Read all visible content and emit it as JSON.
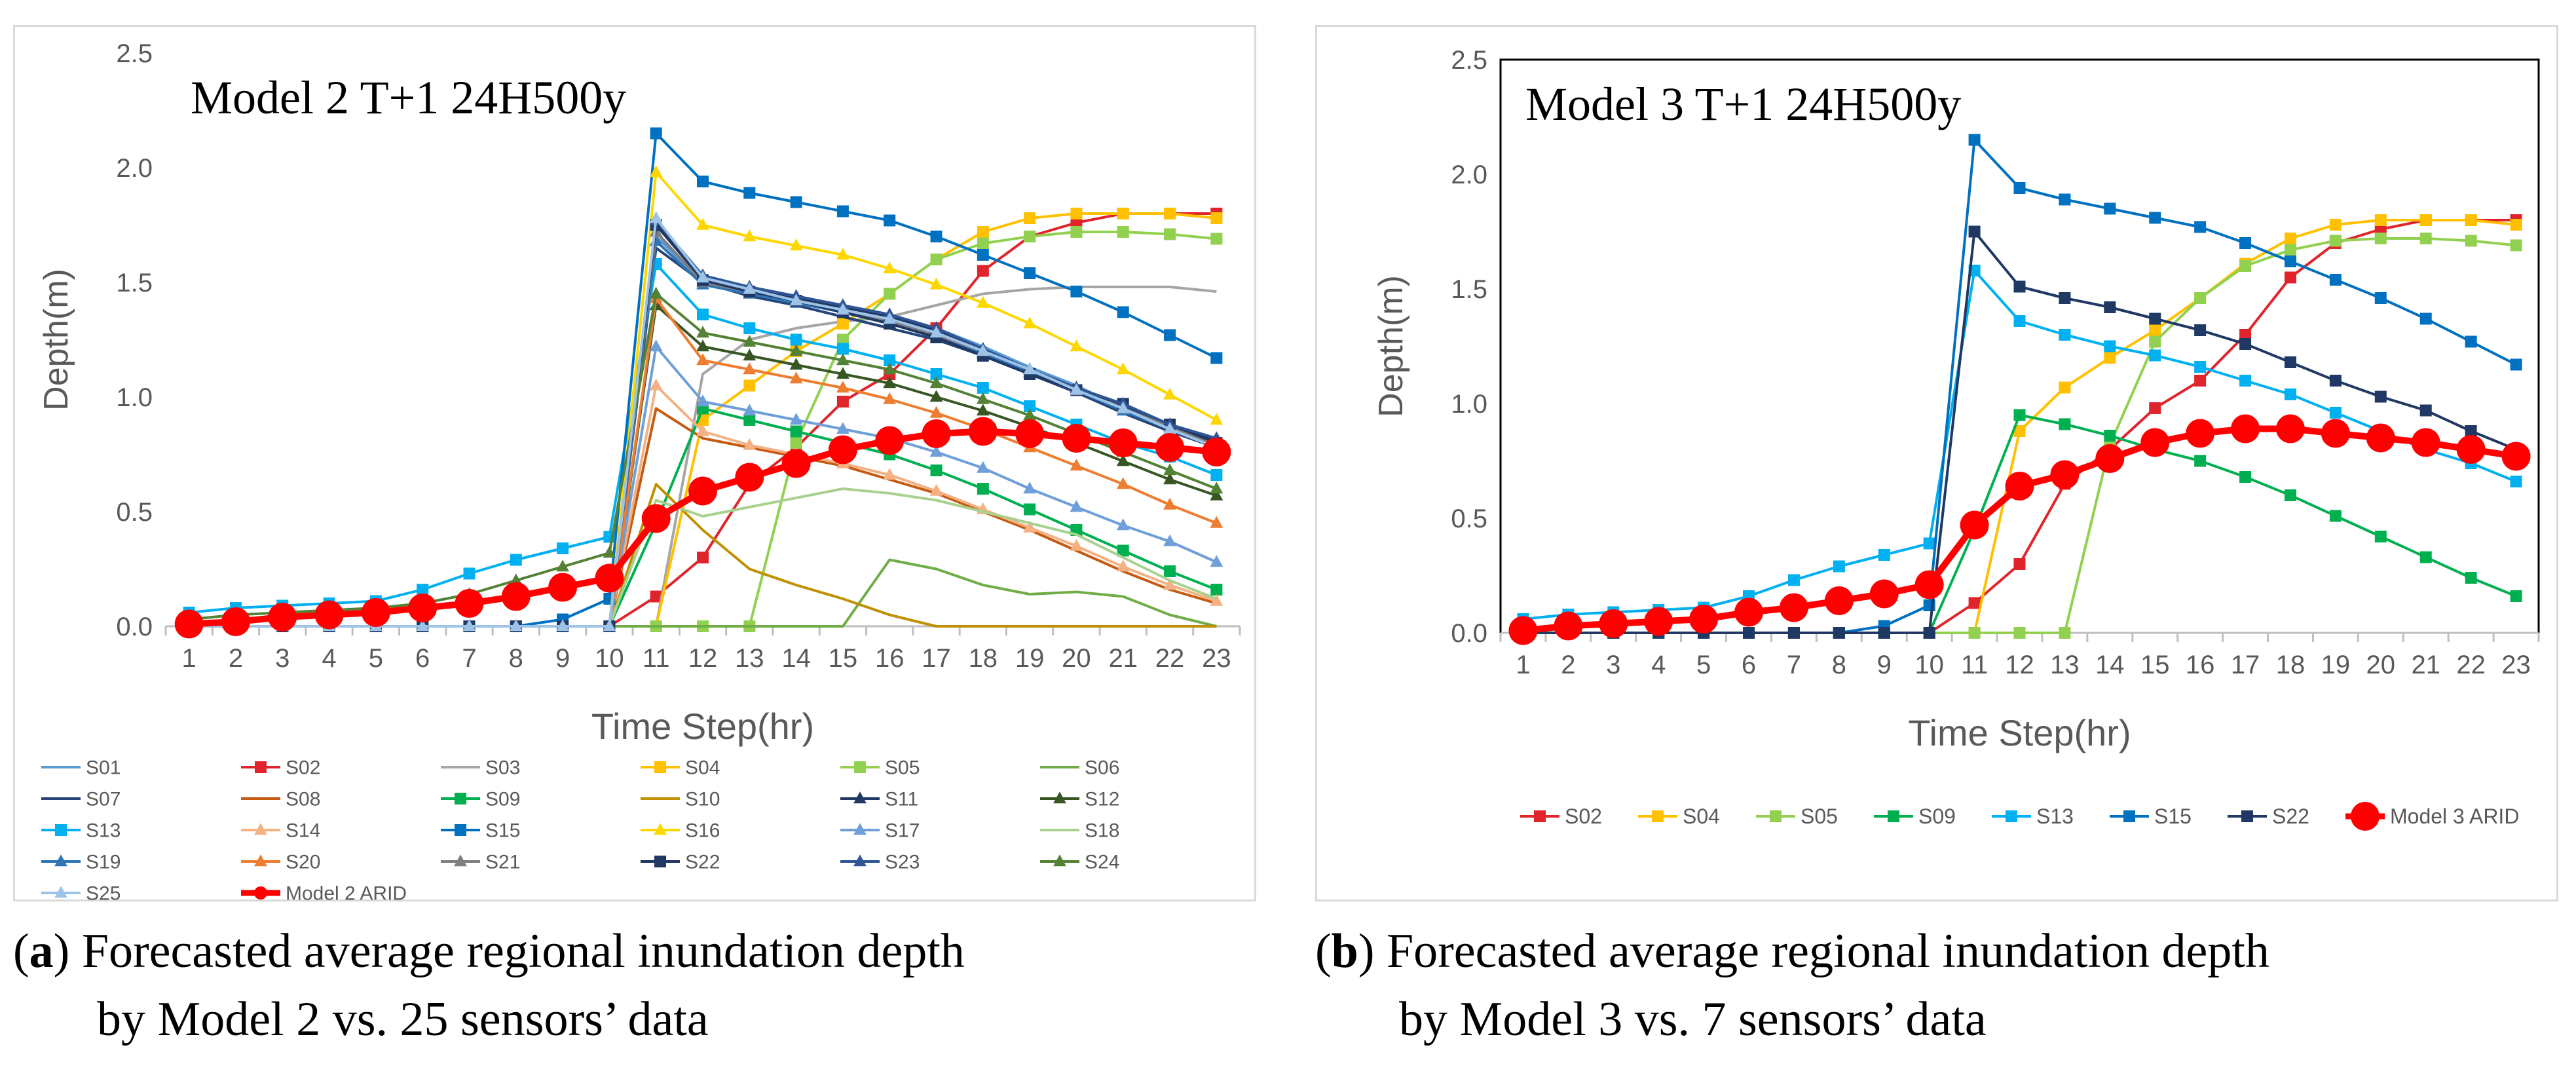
{
  "chart_data": [
    {
      "type": "line",
      "panel": "a",
      "title": "Model 2 T+1 24H500y",
      "xlabel": "Time Step(hr)",
      "ylabel": "Depth(m)",
      "ylim": [
        0,
        2.5
      ],
      "yticks": [
        "0.0",
        "0.5",
        "1.0",
        "1.5",
        "2.0",
        "2.5"
      ],
      "x": [
        1,
        2,
        3,
        4,
        5,
        6,
        7,
        8,
        9,
        10,
        11,
        12,
        13,
        14,
        15,
        16,
        17,
        18,
        19,
        20,
        21,
        22,
        23
      ],
      "legend_position": "bottom",
      "series": [
        {
          "name": "S01",
          "color": "#5b9bd5",
          "marker": "none",
          "values": [
            0,
            0,
            0,
            0,
            0,
            0,
            0,
            0,
            0,
            0,
            1.7,
            1.5,
            1.45,
            1.42,
            1.4,
            1.35,
            1.3,
            1.22,
            1.13,
            1.05,
            0.95,
            0.88,
            0.8
          ]
        },
        {
          "name": "S02",
          "color": "#e0242b",
          "marker": "square",
          "values": [
            0,
            0,
            0,
            0,
            0,
            0,
            0,
            0,
            0,
            0,
            0.13,
            0.3,
            0.62,
            0.78,
            0.98,
            1.1,
            1.3,
            1.55,
            1.7,
            1.76,
            1.8,
            1.8,
            1.8
          ]
        },
        {
          "name": "S03",
          "color": "#a5a5a5",
          "marker": "none",
          "values": [
            0,
            0,
            0,
            0,
            0,
            0,
            0,
            0,
            0,
            0,
            0,
            1.1,
            1.25,
            1.3,
            1.33,
            1.35,
            1.4,
            1.45,
            1.47,
            1.48,
            1.48,
            1.48,
            1.46
          ]
        },
        {
          "name": "S04",
          "color": "#ffc000",
          "marker": "square",
          "values": [
            0,
            0,
            0,
            0,
            0,
            0,
            0,
            0,
            0,
            0,
            0,
            0.9,
            1.05,
            1.2,
            1.32,
            1.45,
            1.6,
            1.72,
            1.78,
            1.8,
            1.8,
            1.8,
            1.78
          ]
        },
        {
          "name": "S05",
          "color": "#92d050",
          "marker": "square",
          "values": [
            0,
            0,
            0,
            0,
            0,
            0,
            0,
            0,
            0,
            0,
            0,
            0,
            0,
            0.8,
            1.25,
            1.45,
            1.6,
            1.67,
            1.7,
            1.72,
            1.72,
            1.71,
            1.69
          ]
        },
        {
          "name": "S06",
          "color": "#70ad47",
          "marker": "none",
          "values": [
            0,
            0,
            0,
            0,
            0,
            0,
            0,
            0,
            0,
            0,
            0,
            0,
            0,
            0,
            0,
            0.29,
            0.25,
            0.18,
            0.14,
            0.15,
            0.13,
            0.05,
            0
          ]
        },
        {
          "name": "S07",
          "color": "#264478",
          "marker": "none",
          "values": [
            0,
            0,
            0,
            0,
            0,
            0,
            0,
            0,
            0,
            0,
            1.65,
            1.5,
            1.44,
            1.4,
            1.35,
            1.3,
            1.25,
            1.18,
            1.1,
            1.02,
            0.93,
            0.85,
            0.78
          ]
        },
        {
          "name": "S08",
          "color": "#c55a11",
          "marker": "none",
          "values": [
            0,
            0,
            0,
            0,
            0,
            0,
            0,
            0,
            0,
            0,
            0.95,
            0.82,
            0.78,
            0.74,
            0.7,
            0.64,
            0.58,
            0.5,
            0.42,
            0.33,
            0.24,
            0.16,
            0.1
          ]
        },
        {
          "name": "S09",
          "color": "#00b050",
          "marker": "square",
          "values": [
            0,
            0,
            0,
            0,
            0,
            0,
            0,
            0,
            0,
            0,
            0.45,
            0.95,
            0.9,
            0.85,
            0.8,
            0.75,
            0.68,
            0.6,
            0.51,
            0.42,
            0.33,
            0.24,
            0.16
          ]
        },
        {
          "name": "S10",
          "color": "#bf9000",
          "marker": "none",
          "values": [
            0,
            0,
            0,
            0,
            0,
            0,
            0,
            0,
            0,
            0,
            0.62,
            0.42,
            0.25,
            0.18,
            0.12,
            0.05,
            0,
            0,
            0,
            0,
            0,
            0,
            0
          ]
        },
        {
          "name": "S11",
          "color": "#203864",
          "marker": "triangle",
          "values": [
            0,
            0,
            0,
            0,
            0,
            0,
            0,
            0,
            0,
            0,
            1.76,
            1.52,
            1.47,
            1.43,
            1.39,
            1.35,
            1.29,
            1.2,
            1.12,
            1.04,
            0.96,
            0.88,
            0.81
          ]
        },
        {
          "name": "S12",
          "color": "#375623",
          "marker": "triangle",
          "values": [
            0,
            0,
            0,
            0,
            0,
            0,
            0,
            0,
            0,
            0,
            1.4,
            1.22,
            1.18,
            1.14,
            1.1,
            1.06,
            1.0,
            0.94,
            0.87,
            0.8,
            0.72,
            0.64,
            0.57
          ]
        },
        {
          "name": "S13",
          "color": "#00b0f0",
          "marker": "square",
          "values": [
            0.06,
            0.08,
            0.09,
            0.1,
            0.11,
            0.16,
            0.23,
            0.29,
            0.34,
            0.39,
            1.58,
            1.36,
            1.3,
            1.25,
            1.21,
            1.16,
            1.1,
            1.04,
            0.96,
            0.88,
            0.8,
            0.74,
            0.66
          ]
        },
        {
          "name": "S14",
          "color": "#f4b183",
          "marker": "triangle",
          "values": [
            0,
            0,
            0,
            0,
            0,
            0,
            0,
            0,
            0,
            0,
            1.05,
            0.85,
            0.79,
            0.75,
            0.71,
            0.66,
            0.59,
            0.51,
            0.43,
            0.35,
            0.26,
            0.18,
            0.11
          ]
        },
        {
          "name": "S15",
          "color": "#0070c0",
          "marker": "square",
          "values": [
            0,
            0,
            0,
            0,
            0,
            0,
            0,
            0,
            0.03,
            0.12,
            2.15,
            1.94,
            1.89,
            1.85,
            1.81,
            1.77,
            1.7,
            1.62,
            1.54,
            1.46,
            1.37,
            1.27,
            1.17
          ]
        },
        {
          "name": "S16",
          "color": "#ffd700",
          "marker": "triangle",
          "values": [
            0,
            0,
            0,
            0,
            0,
            0,
            0,
            0,
            0,
            0,
            1.98,
            1.75,
            1.7,
            1.66,
            1.62,
            1.56,
            1.49,
            1.41,
            1.32,
            1.22,
            1.12,
            1.01,
            0.9
          ]
        },
        {
          "name": "S17",
          "color": "#6f9fd8",
          "marker": "triangle",
          "values": [
            0,
            0,
            0,
            0,
            0,
            0,
            0,
            0,
            0,
            0,
            1.22,
            0.98,
            0.94,
            0.9,
            0.86,
            0.82,
            0.76,
            0.69,
            0.6,
            0.52,
            0.44,
            0.37,
            0.28
          ]
        },
        {
          "name": "S18",
          "color": "#a9d18e",
          "marker": "none",
          "values": [
            0,
            0,
            0,
            0,
            0,
            0,
            0,
            0,
            0,
            0,
            0.55,
            0.48,
            0.52,
            0.56,
            0.6,
            0.58,
            0.55,
            0.5,
            0.45,
            0.4,
            0.3,
            0.2,
            0.12
          ]
        },
        {
          "name": "S19",
          "color": "#2e75b6",
          "marker": "triangle",
          "values": [
            0,
            0,
            0,
            0,
            0,
            0,
            0,
            0,
            0,
            0,
            1.68,
            1.49,
            1.45,
            1.41,
            1.37,
            1.32,
            1.26,
            1.19,
            1.11,
            1.03,
            0.94,
            0.86,
            0.78
          ]
        },
        {
          "name": "S20",
          "color": "#ed7d31",
          "marker": "triangle",
          "values": [
            0,
            0,
            0,
            0,
            0,
            0,
            0,
            0,
            0,
            0,
            1.43,
            1.16,
            1.12,
            1.08,
            1.04,
            0.99,
            0.93,
            0.86,
            0.78,
            0.7,
            0.62,
            0.53,
            0.45
          ]
        },
        {
          "name": "S21",
          "color": "#7f7f7f",
          "marker": "triangle",
          "values": [
            0,
            0,
            0,
            0,
            0,
            0,
            0,
            0,
            0,
            0,
            1.72,
            1.5,
            1.46,
            1.42,
            1.38,
            1.33,
            1.27,
            1.2,
            1.12,
            1.04,
            0.95,
            0.87,
            0.79
          ]
        },
        {
          "name": "S22",
          "color": "#1f3864",
          "marker": "square",
          "values": [
            0,
            0,
            0,
            0,
            0,
            0,
            0,
            0,
            0,
            0,
            1.75,
            1.51,
            1.46,
            1.42,
            1.37,
            1.32,
            1.26,
            1.18,
            1.1,
            1.03,
            0.97,
            0.88,
            0.8
          ]
        },
        {
          "name": "S23",
          "color": "#2f5597",
          "marker": "triangle",
          "values": [
            0,
            0,
            0,
            0,
            0,
            0,
            0,
            0,
            0,
            0,
            1.77,
            1.53,
            1.48,
            1.44,
            1.4,
            1.36,
            1.3,
            1.21,
            1.12,
            1.04,
            0.97,
            0.88,
            0.82
          ]
        },
        {
          "name": "S24",
          "color": "#548235",
          "marker": "triangle",
          "values": [
            0.03,
            0.05,
            0.06,
            0.07,
            0.08,
            0.1,
            0.14,
            0.2,
            0.26,
            0.32,
            1.45,
            1.28,
            1.24,
            1.2,
            1.16,
            1.12,
            1.06,
            0.99,
            0.92,
            0.84,
            0.76,
            0.68,
            0.6
          ]
        },
        {
          "name": "S25",
          "color": "#9dc3e6",
          "marker": "triangle",
          "values": [
            0,
            0,
            0,
            0,
            0,
            0,
            0,
            0,
            0,
            0,
            1.78,
            1.52,
            1.47,
            1.42,
            1.38,
            1.34,
            1.28,
            1.2,
            1.12,
            1.03,
            0.95,
            0.86,
            0.78
          ]
        },
        {
          "name": "Model 2 ARID",
          "color": "#ff0000",
          "marker": "circle",
          "bold": true,
          "values": [
            0.01,
            0.02,
            0.04,
            0.05,
            0.06,
            0.08,
            0.1,
            0.13,
            0.17,
            0.21,
            0.47,
            0.59,
            0.65,
            0.71,
            0.77,
            0.81,
            0.84,
            0.85,
            0.84,
            0.82,
            0.8,
            0.78,
            0.76
          ]
        }
      ]
    },
    {
      "type": "line",
      "panel": "b",
      "title": "Model 3 T+1 24H500y",
      "xlabel": "Time Step(hr)",
      "ylabel": "Depth(m)",
      "ylim": [
        0,
        2.5
      ],
      "yticks": [
        "0.0",
        "0.5",
        "1.0",
        "1.5",
        "2.0",
        "2.5"
      ],
      "x": [
        1,
        2,
        3,
        4,
        5,
        6,
        7,
        8,
        9,
        10,
        11,
        12,
        13,
        14,
        15,
        16,
        17,
        18,
        19,
        20,
        21,
        22,
        23
      ],
      "legend_position": "bottom",
      "series": [
        {
          "name": "S02",
          "color": "#e0242b",
          "marker": "square",
          "values": [
            0,
            0,
            0,
            0,
            0,
            0,
            0,
            0,
            0,
            0,
            0.13,
            0.3,
            0.65,
            0.8,
            0.98,
            1.1,
            1.3,
            1.55,
            1.7,
            1.76,
            1.8,
            1.8,
            1.8
          ]
        },
        {
          "name": "S04",
          "color": "#ffc000",
          "marker": "square",
          "values": [
            0,
            0,
            0,
            0,
            0,
            0,
            0,
            0,
            0,
            0,
            0,
            0.88,
            1.07,
            1.2,
            1.32,
            1.46,
            1.61,
            1.72,
            1.78,
            1.8,
            1.8,
            1.8,
            1.78
          ]
        },
        {
          "name": "S05",
          "color": "#92d050",
          "marker": "square",
          "values": [
            0,
            0,
            0,
            0,
            0,
            0,
            0,
            0,
            0,
            0,
            0,
            0,
            0,
            0.82,
            1.27,
            1.46,
            1.6,
            1.67,
            1.71,
            1.72,
            1.72,
            1.71,
            1.69
          ]
        },
        {
          "name": "S09",
          "color": "#00b050",
          "marker": "square",
          "values": [
            0,
            0,
            0,
            0,
            0,
            0,
            0,
            0,
            0,
            0,
            0.45,
            0.95,
            0.91,
            0.86,
            0.8,
            0.75,
            0.68,
            0.6,
            0.51,
            0.42,
            0.33,
            0.24,
            0.16
          ]
        },
        {
          "name": "S13",
          "color": "#00b0f0",
          "marker": "square",
          "values": [
            0.06,
            0.08,
            0.09,
            0.1,
            0.11,
            0.16,
            0.23,
            0.29,
            0.34,
            0.39,
            1.58,
            1.36,
            1.3,
            1.25,
            1.21,
            1.16,
            1.1,
            1.04,
            0.96,
            0.88,
            0.8,
            0.74,
            0.66
          ]
        },
        {
          "name": "S15",
          "color": "#0070c0",
          "marker": "square",
          "values": [
            0,
            0,
            0,
            0,
            0,
            0,
            0,
            0,
            0.03,
            0.12,
            2.15,
            1.94,
            1.89,
            1.85,
            1.81,
            1.77,
            1.7,
            1.62,
            1.54,
            1.46,
            1.37,
            1.27,
            1.17
          ]
        },
        {
          "name": "S22",
          "color": "#1f3864",
          "marker": "square",
          "values": [
            0,
            0,
            0,
            0,
            0,
            0,
            0,
            0,
            0,
            0,
            1.75,
            1.51,
            1.46,
            1.42,
            1.37,
            1.32,
            1.26,
            1.18,
            1.1,
            1.03,
            0.97,
            0.88,
            0.8
          ]
        },
        {
          "name": "Model 3 ARID",
          "color": "#ff0000",
          "marker": "circle",
          "bold": true,
          "values": [
            0.01,
            0.03,
            0.04,
            0.05,
            0.06,
            0.09,
            0.11,
            0.14,
            0.17,
            0.21,
            0.47,
            0.64,
            0.69,
            0.76,
            0.83,
            0.87,
            0.89,
            0.89,
            0.87,
            0.85,
            0.83,
            0.8,
            0.77
          ]
        }
      ]
    }
  ],
  "captions": {
    "a": {
      "label": "a",
      "line1": " Forecasted average regional inundation depth",
      "line2": "by Model 2 vs. 25 sensors’ data"
    },
    "b": {
      "label": "b",
      "line1": " Forecasted average regional inundation depth",
      "line2": "by Model 3 vs. 7 sensors’ data"
    }
  }
}
